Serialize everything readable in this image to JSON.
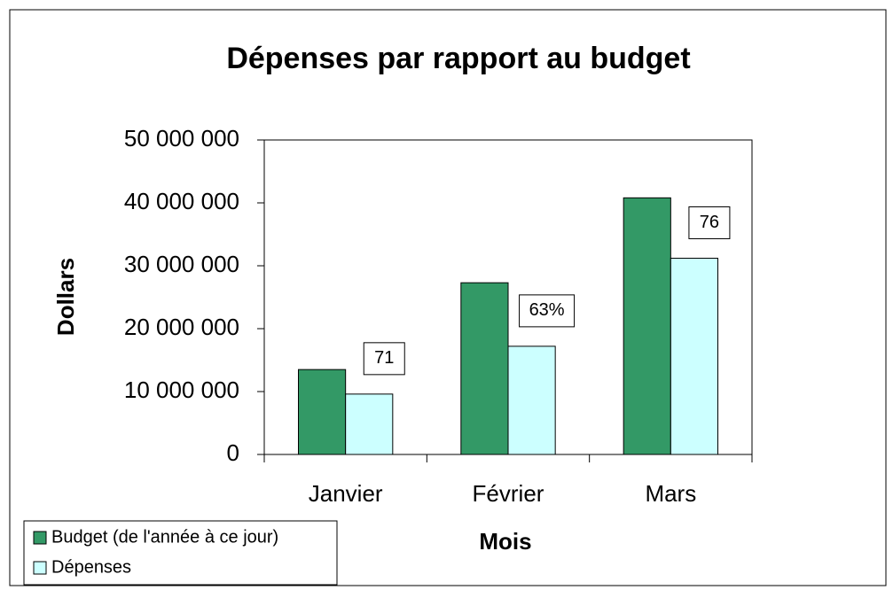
{
  "chart_data": {
    "type": "bar",
    "title": "Dépenses par rapport au budget",
    "x_label": "Mois",
    "y_label": "Dollars",
    "categories": [
      "Janvier",
      "Février",
      "Mars"
    ],
    "series": [
      {
        "name": "Budget (de l'année à ce jour)",
        "color": "#339966",
        "values": [
          13500000,
          27300000,
          40800000
        ]
      },
      {
        "name": "Dépenses",
        "color": "#ccffff",
        "values": [
          9600000,
          17200000,
          31200000
        ]
      }
    ],
    "data_labels": [
      "71",
      "63%",
      "76"
    ],
    "ylim": [
      0,
      50000000
    ],
    "yticks": [
      0,
      {
        "value": 10000000,
        "label": "10 000 000"
      },
      {
        "value": 20000000,
        "label": "20 000 000"
      },
      {
        "value": 30000000,
        "label": "30 000 000"
      },
      {
        "value": 40000000,
        "label": "40 000 000"
      },
      {
        "value": 50000000,
        "label": "50 000 000"
      }
    ],
    "legend": "bottom-left"
  }
}
